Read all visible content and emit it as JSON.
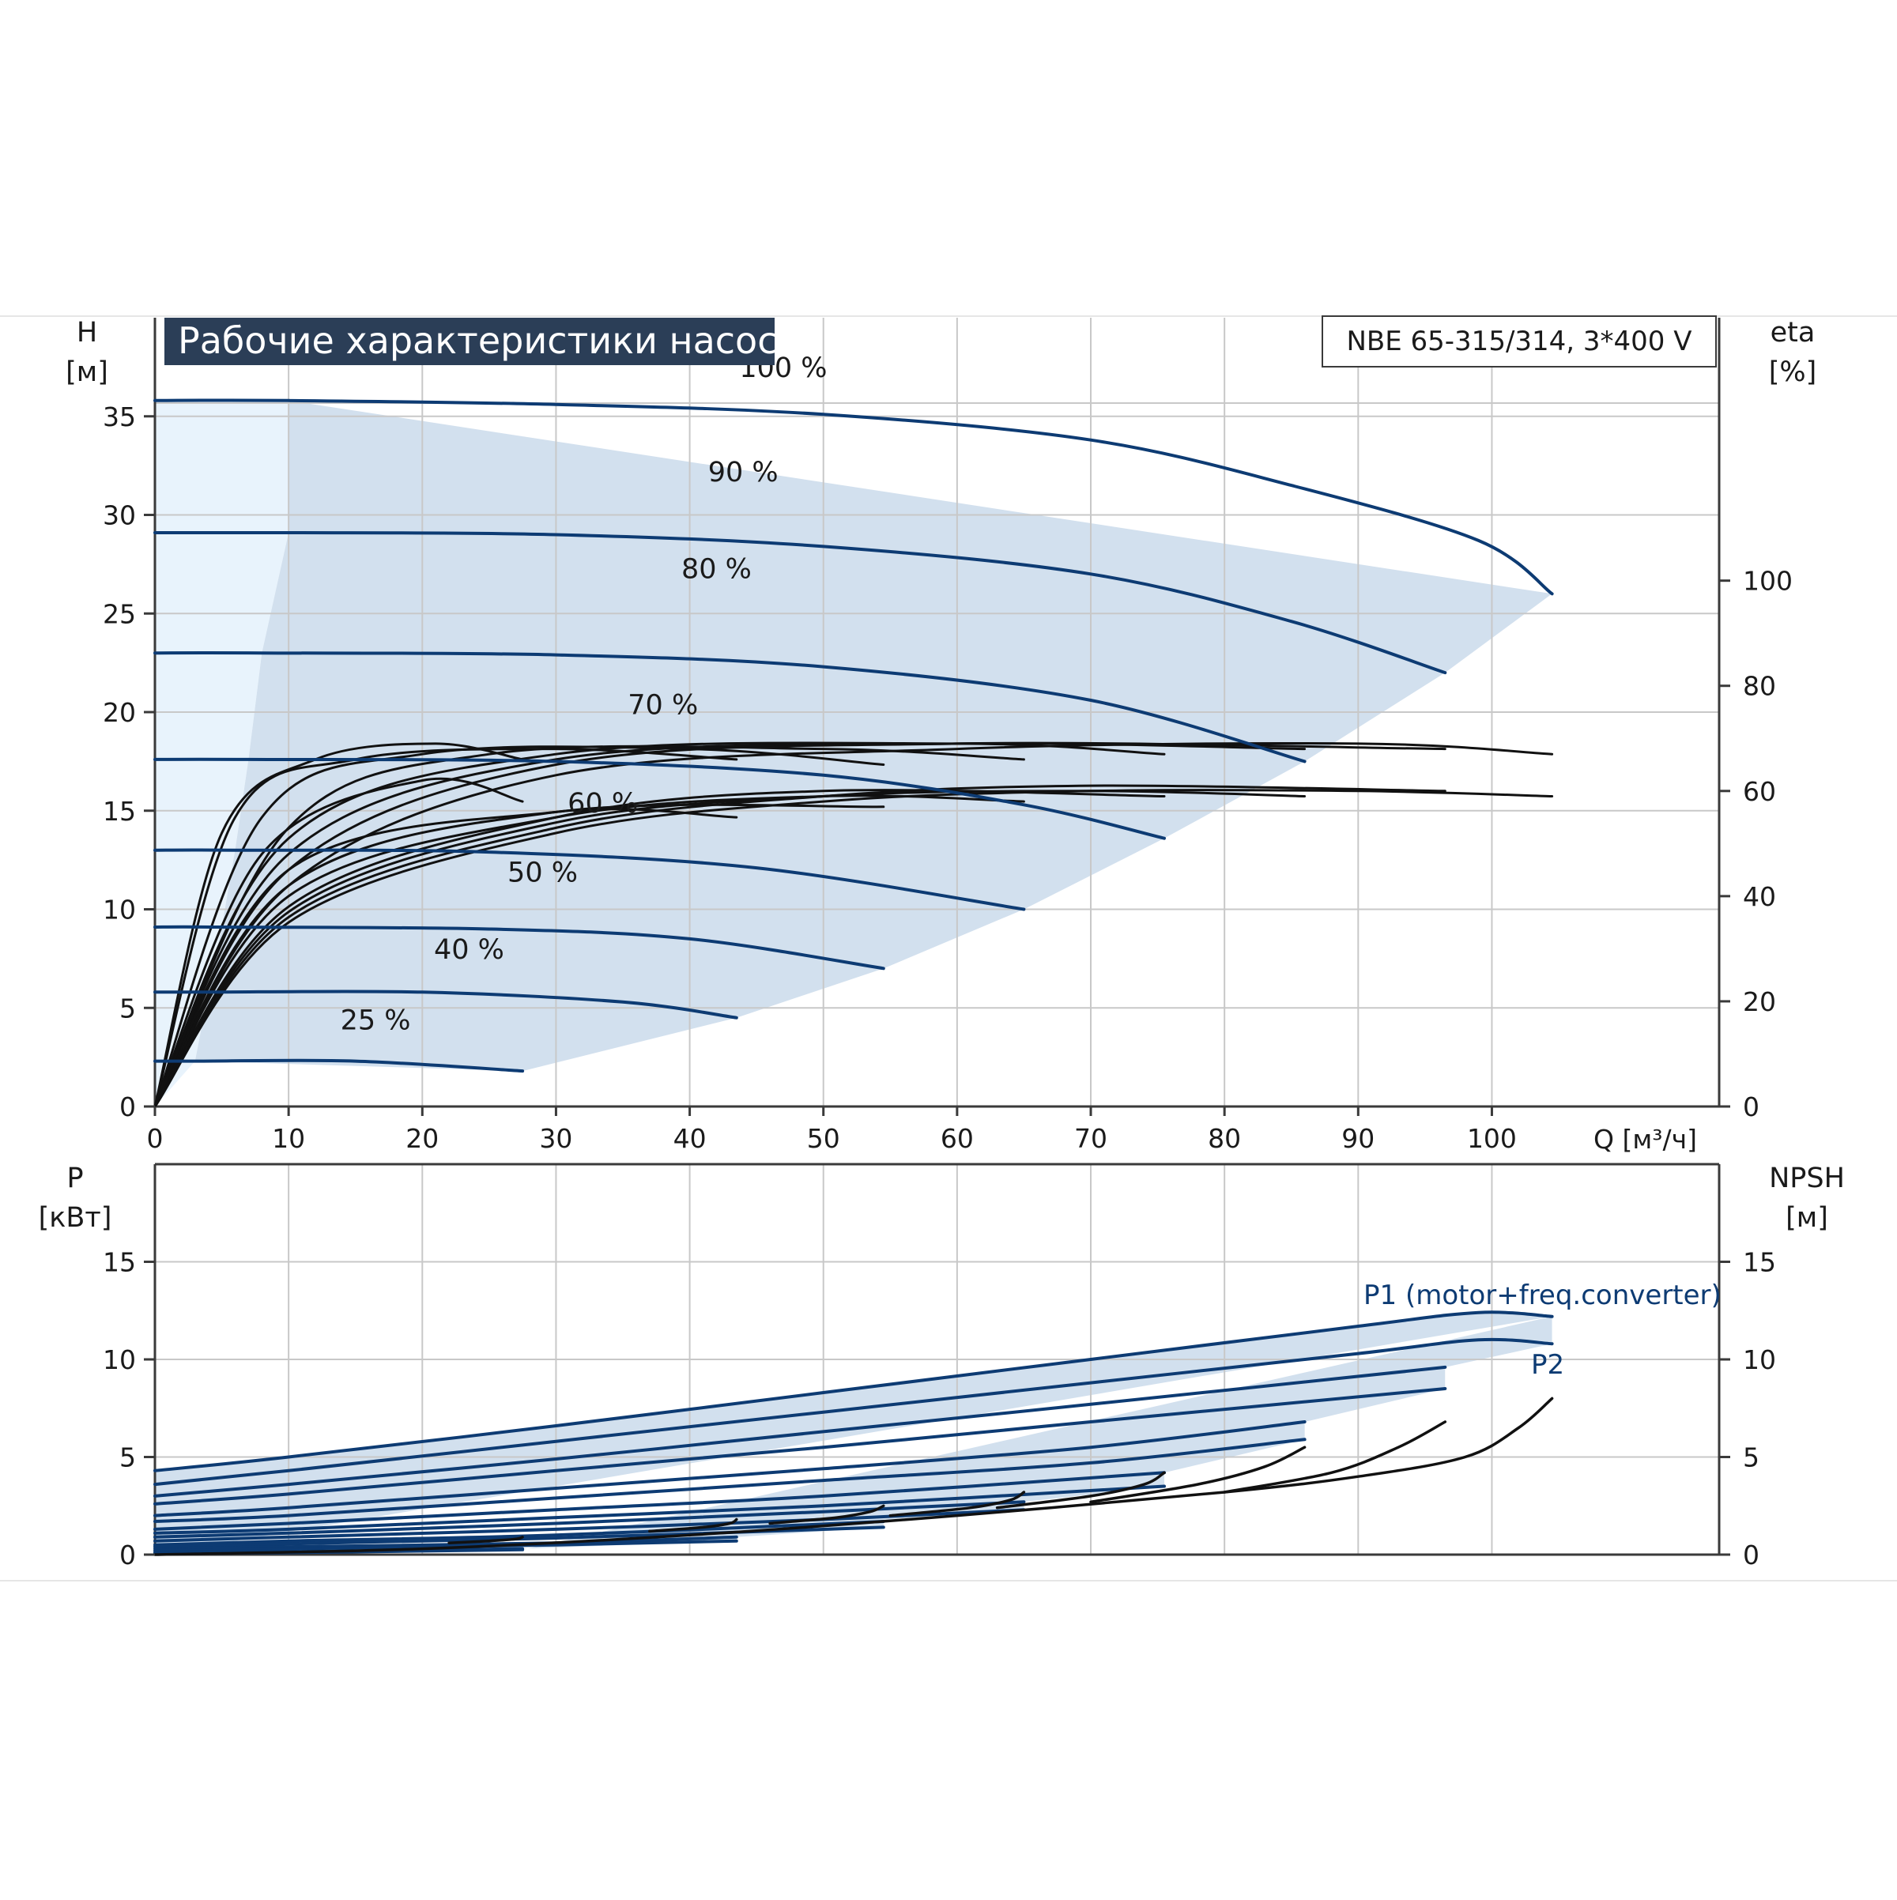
{
  "header": {
    "title": "Рабочие характеристики насоса",
    "model": "NBE 65-315/314, 3*400 V"
  },
  "chart_data": [
    {
      "type": "line",
      "name": "head",
      "y_left_label": "H",
      "y_left_unit": "[м]",
      "y_right_label": "eta",
      "y_right_unit": "[%]",
      "x_label": "Q [м³/ч]",
      "xlim": [
        0,
        117
      ],
      "ylim_left": [
        0,
        40
      ],
      "ylim_right": [
        0,
        150
      ],
      "x_ticks": [
        0,
        10,
        20,
        30,
        40,
        50,
        60,
        70,
        80,
        90,
        100
      ],
      "y_left_ticks": [
        0,
        5,
        10,
        15,
        20,
        25,
        30,
        35
      ],
      "y_right_ticks": [
        0,
        20,
        40,
        60,
        80,
        100
      ],
      "grid": true,
      "head_series": [
        {
          "name": "100 %",
          "x": [
            0,
            10,
            30,
            50,
            70,
            85,
            99,
            104.5
          ],
          "y": [
            35.8,
            35.8,
            35.6,
            35.1,
            33.8,
            31.5,
            28.7,
            26.0
          ]
        },
        {
          "name": "90 %",
          "x": [
            0,
            10,
            30,
            50,
            70,
            85,
            96.5
          ],
          "y": [
            29.1,
            29.1,
            29.0,
            28.4,
            27.0,
            24.6,
            22.0
          ]
        },
        {
          "name": "80 %",
          "x": [
            0,
            8,
            30,
            50,
            70,
            86
          ],
          "y": [
            23.0,
            23.0,
            22.9,
            22.3,
            20.6,
            17.5
          ]
        },
        {
          "name": "70 %",
          "x": [
            0,
            7,
            30,
            50,
            65,
            75.5
          ],
          "y": [
            17.6,
            17.6,
            17.5,
            16.8,
            15.3,
            13.6
          ]
        },
        {
          "name": "60 %",
          "x": [
            0,
            6,
            25,
            45,
            65
          ],
          "y": [
            13.0,
            13.0,
            12.9,
            12.1,
            10.0
          ]
        },
        {
          "name": "50 %",
          "x": [
            0,
            5,
            25,
            40,
            54.5
          ],
          "y": [
            9.1,
            9.1,
            9.0,
            8.5,
            7.0
          ]
        },
        {
          "name": "40 %",
          "x": [
            0,
            4,
            20,
            35,
            43.5
          ],
          "y": [
            5.8,
            5.8,
            5.8,
            5.3,
            4.5
          ]
        },
        {
          "name": "25 %",
          "x": [
            0,
            3,
            15,
            27.5
          ],
          "y": [
            2.3,
            2.3,
            2.3,
            1.8
          ]
        }
      ],
      "eta_series": [
        {
          "x": [
            0,
            10,
            30,
            50,
            70,
            90,
            104.5
          ],
          "y": [
            0,
            35,
            52,
            58,
            60,
            60,
            59
          ]
        },
        {
          "x": [
            0,
            10,
            30,
            50,
            70,
            96.5
          ],
          "y": [
            0,
            36,
            53,
            59,
            61,
            60
          ]
        },
        {
          "x": [
            0,
            10,
            30,
            50,
            70,
            86
          ],
          "y": [
            0,
            37,
            54,
            59,
            60,
            59
          ]
        },
        {
          "x": [
            0,
            10,
            30,
            50,
            75.5
          ],
          "y": [
            0,
            38,
            55,
            60,
            59
          ]
        },
        {
          "x": [
            0,
            10,
            30,
            50,
            65
          ],
          "y": [
            0,
            40,
            55,
            59,
            58
          ]
        },
        {
          "x": [
            0,
            10,
            30,
            54.5
          ],
          "y": [
            0,
            42,
            56,
            57
          ]
        },
        {
          "x": [
            0,
            10,
            30,
            43.5
          ],
          "y": [
            0,
            45,
            56,
            55
          ]
        },
        {
          "x": [
            0,
            8,
            20,
            27.5
          ],
          "y": [
            0,
            48,
            62,
            58
          ]
        },
        {
          "x": [
            0,
            10,
            30,
            60,
            90,
            104.5
          ],
          "y": [
            0,
            42,
            63,
            68,
            69,
            67
          ]
        },
        {
          "x": [
            0,
            10,
            30,
            60,
            96.5
          ],
          "y": [
            0,
            45,
            65,
            69,
            68
          ]
        },
        {
          "x": [
            0,
            10,
            30,
            60,
            86
          ],
          "y": [
            0,
            48,
            66,
            69,
            68
          ]
        },
        {
          "x": [
            0,
            10,
            30,
            60,
            75.5
          ],
          "y": [
            0,
            51,
            67,
            69,
            67
          ]
        },
        {
          "x": [
            0,
            10,
            25,
            50,
            65
          ],
          "y": [
            0,
            53,
            67,
            68,
            66
          ]
        },
        {
          "x": [
            0,
            8,
            20,
            40,
            54.5
          ],
          "y": [
            0,
            55,
            67,
            68,
            65
          ]
        },
        {
          "x": [
            0,
            6,
            15,
            30,
            43.5
          ],
          "y": [
            0,
            55,
            66,
            68,
            66
          ]
        },
        {
          "x": [
            0,
            5,
            12,
            21,
            27.5
          ],
          "y": [
            0,
            52,
            66,
            69,
            66
          ]
        }
      ]
    },
    {
      "type": "line",
      "name": "power_npsh",
      "y_left_label": "P",
      "y_left_unit": "[кВт]",
      "y_right_label": "NPSH",
      "y_right_unit": "[м]",
      "xlim": [
        0,
        117
      ],
      "ylim_left": [
        0,
        20
      ],
      "ylim_right": [
        0,
        20
      ],
      "y_left_ticks": [
        0,
        5,
        10,
        15
      ],
      "y_right_ticks": [
        0,
        5,
        10,
        15
      ],
      "grid": true,
      "series_labels": {
        "p1": "P1 (motor+freq.converter)",
        "p2": "P2"
      },
      "power_series": [
        {
          "x": [
            0,
            10,
            30,
            50,
            70,
            90,
            99,
            104.5
          ],
          "y": [
            4.3,
            5.0,
            6.6,
            8.3,
            10.0,
            11.7,
            12.4,
            12.2
          ]
        },
        {
          "x": [
            0,
            10,
            30,
            50,
            70,
            90,
            99,
            104.5
          ],
          "y": [
            3.6,
            4.3,
            5.8,
            7.3,
            8.8,
            10.3,
            11.0,
            10.8
          ]
        },
        {
          "x": [
            0,
            10,
            30,
            50,
            70,
            96.5
          ],
          "y": [
            3.0,
            3.6,
            4.9,
            6.3,
            7.7,
            9.6
          ]
        },
        {
          "x": [
            0,
            10,
            30,
            50,
            70,
            96.5
          ],
          "y": [
            2.6,
            3.1,
            4.3,
            5.5,
            6.8,
            8.5
          ]
        },
        {
          "x": [
            0,
            10,
            30,
            50,
            70,
            86
          ],
          "y": [
            2.0,
            2.4,
            3.4,
            4.4,
            5.5,
            6.8
          ]
        },
        {
          "x": [
            0,
            10,
            30,
            50,
            70,
            86
          ],
          "y": [
            1.7,
            2.0,
            2.9,
            3.8,
            4.7,
            5.9
          ]
        },
        {
          "x": [
            0,
            10,
            30,
            50,
            75.5
          ],
          "y": [
            1.3,
            1.6,
            2.3,
            3.0,
            4.2
          ]
        },
        {
          "x": [
            0,
            10,
            30,
            50,
            75.5
          ],
          "y": [
            1.1,
            1.3,
            1.9,
            2.5,
            3.5
          ]
        },
        {
          "x": [
            0,
            10,
            30,
            50,
            65
          ],
          "y": [
            0.9,
            1.1,
            1.6,
            2.2,
            2.7
          ]
        },
        {
          "x": [
            0,
            10,
            30,
            50,
            65
          ],
          "y": [
            0.7,
            0.9,
            1.3,
            1.8,
            2.3
          ]
        },
        {
          "x": [
            0,
            10,
            30,
            54.5
          ],
          "y": [
            0.5,
            0.7,
            1.0,
            1.7
          ]
        },
        {
          "x": [
            0,
            10,
            30,
            54.5
          ],
          "y": [
            0.4,
            0.55,
            0.85,
            1.4
          ]
        },
        {
          "x": [
            0,
            10,
            30,
            43.5
          ],
          "y": [
            0.3,
            0.4,
            0.6,
            0.9
          ]
        },
        {
          "x": [
            0,
            10,
            30,
            43.5
          ],
          "y": [
            0.2,
            0.3,
            0.5,
            0.7
          ]
        },
        {
          "x": [
            0,
            10,
            27.5
          ],
          "y": [
            0.1,
            0.15,
            0.3
          ]
        },
        {
          "x": [
            0,
            10,
            27.5
          ],
          "y": [
            0.05,
            0.1,
            0.25
          ]
        }
      ],
      "npsh_series": [
        {
          "x": [
            0,
            20,
            40,
            60,
            80,
            90,
            98,
            102,
            104.5
          ],
          "y": [
            0,
            0.3,
            1.0,
            2.0,
            3.2,
            4.0,
            5.0,
            6.5,
            8.0
          ]
        },
        {
          "x": [
            80,
            88,
            93,
            96.5
          ],
          "y": [
            3.2,
            4.2,
            5.5,
            6.8
          ]
        },
        {
          "x": [
            70,
            78,
            83,
            86
          ],
          "y": [
            2.7,
            3.6,
            4.5,
            5.5
          ]
        },
        {
          "x": [
            63,
            70,
            74,
            75.5
          ],
          "y": [
            2.4,
            3.0,
            3.6,
            4.2
          ]
        },
        {
          "x": [
            55,
            61,
            64,
            65
          ],
          "y": [
            2.0,
            2.4,
            2.8,
            3.2
          ]
        },
        {
          "x": [
            46,
            51,
            53.5,
            54.5
          ],
          "y": [
            1.6,
            1.9,
            2.2,
            2.5
          ]
        },
        {
          "x": [
            37,
            41,
            43,
            43.5
          ],
          "y": [
            1.2,
            1.4,
            1.6,
            1.8
          ]
        },
        {
          "x": [
            22,
            25,
            27,
            27.5
          ],
          "y": [
            0.6,
            0.7,
            0.8,
            0.9
          ]
        }
      ]
    }
  ]
}
